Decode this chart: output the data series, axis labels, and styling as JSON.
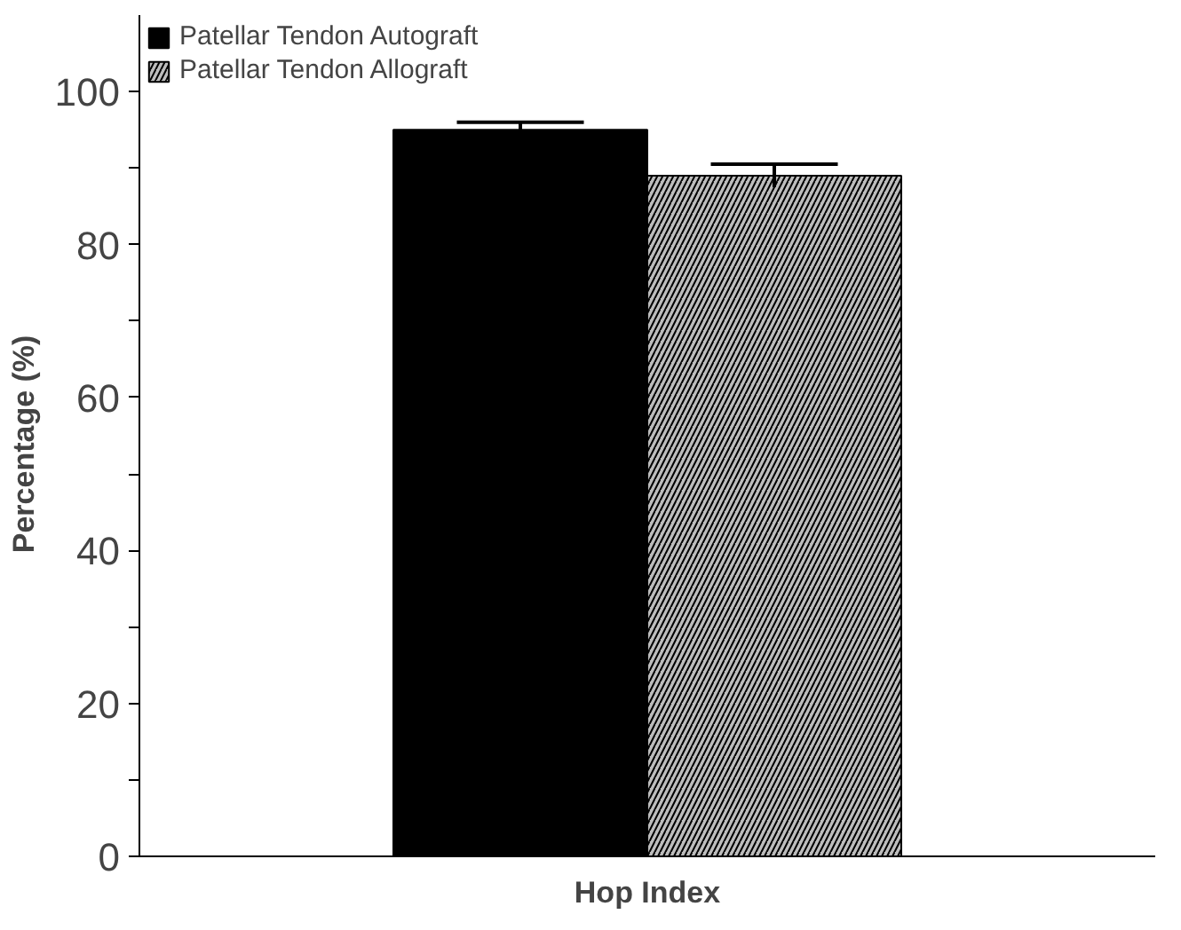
{
  "chart_data": {
    "type": "bar",
    "categories": [
      null
    ],
    "xlabel": "Hop Index",
    "ylabel": "Percentage   (%)",
    "series": [
      {
        "name": "Patellar Tendon Autograft",
        "color": "#000000",
        "values": [
          95
        ],
        "errors": [
          1
        ]
      },
      {
        "name": "Patellar Tendon Allograft",
        "color": "#bdbdbd",
        "values": [
          89
        ],
        "errors": [
          1.5
        ]
      }
    ],
    "ylim": [
      0,
      110
    ],
    "yticks": [
      0,
      {
        "value": 10,
        "label": null
      },
      20,
      {
        "value": 30,
        "label": null
      },
      40,
      {
        "value": 50,
        "label": null
      },
      60,
      {
        "value": 70,
        "label": null
      },
      80,
      {
        "value": 90,
        "label": null
      },
      100
    ],
    "legend": "top left",
    "grid": false
  }
}
